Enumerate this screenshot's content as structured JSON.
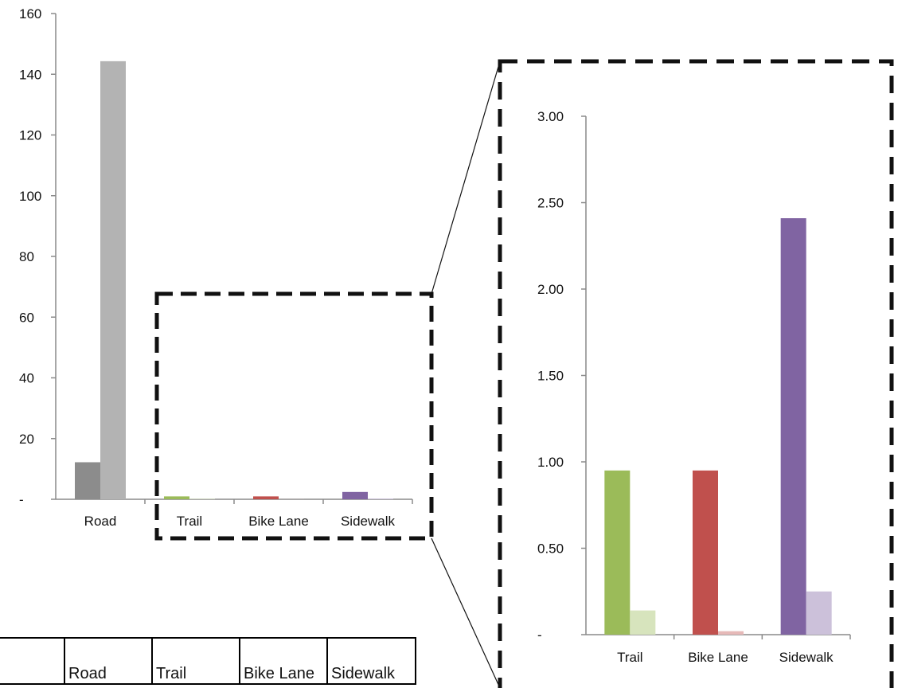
{
  "chart_data": [
    {
      "type": "bar",
      "categories": [
        "Road",
        "Trail",
        "Bike Lane",
        "Sidewalk"
      ],
      "series": [
        {
          "values": [
            12.2,
            0.95,
            0.95,
            2.41
          ]
        },
        {
          "values": [
            144.3,
            0.14,
            0.02,
            0.25
          ]
        }
      ],
      "y_ticks": [
        "-",
        "20",
        "40",
        "60",
        "80",
        "100",
        "120",
        "140",
        "160"
      ],
      "ylim": [
        0,
        160
      ],
      "grid": false,
      "colors": [
        [
          "#8c8c8c",
          "#b3b3b3"
        ],
        [
          "#9bbb59",
          "#d7e4bd"
        ],
        [
          "#c0504d",
          "#e6b9b8"
        ],
        [
          "#8064a2",
          "#ccc1da"
        ]
      ]
    },
    {
      "type": "bar",
      "categories": [
        "Trail",
        "Bike Lane",
        "Sidewalk"
      ],
      "series": [
        {
          "values": [
            0.95,
            0.95,
            2.41
          ]
        },
        {
          "values": [
            0.14,
            0.02,
            0.25
          ]
        }
      ],
      "y_ticks": [
        "-",
        "0.50",
        "1.00",
        "1.50",
        "2.00",
        "2.50",
        "3.00"
      ],
      "ylim": [
        0,
        3
      ],
      "grid": false,
      "colors": [
        [
          "#9bbb59",
          "#d7e4bd"
        ],
        [
          "#c0504d",
          "#e6b9b8"
        ],
        [
          "#8064a2",
          "#ccc1da"
        ]
      ]
    }
  ],
  "table": {
    "headers": [
      "",
      "Road",
      "Trail",
      "Bike Lane",
      "Sidewalk"
    ]
  }
}
